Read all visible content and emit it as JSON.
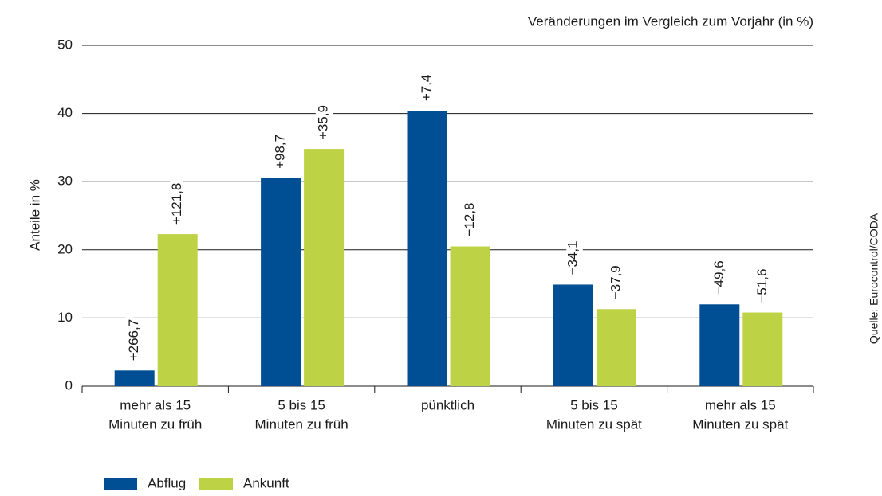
{
  "chart_data": {
    "type": "bar",
    "subtitle": "Veränderungen im Vergleich zum Vorjahr (in %)",
    "y_label": "Anteile in %",
    "source": "Quelle: Eurocontrol/CODA",
    "categories": [
      [
        "mehr als 15",
        "Minuten zu früh"
      ],
      [
        "5 bis 15",
        "Minuten zu früh"
      ],
      [
        "pünktlich"
      ],
      [
        "5 bis 15",
        "Minuten zu spät"
      ],
      [
        "mehr als 15",
        "Minuten zu spät"
      ]
    ],
    "series": [
      {
        "name": "Abflug",
        "color": "#004f94",
        "values": [
          2.3,
          30.5,
          40.4,
          14.9,
          12.0
        ],
        "change_labels": [
          "+266,7",
          "+98,7",
          "+7,4",
          "−34,1",
          "−49,6"
        ]
      },
      {
        "name": "Ankunft",
        "color": "#bdd244",
        "values": [
          22.3,
          34.8,
          20.5,
          11.3,
          10.8
        ],
        "change_labels": [
          "+121,8",
          "+35,9",
          "−12,8",
          "−37,9",
          "−51,6"
        ]
      }
    ],
    "ylim": [
      0,
      50
    ],
    "yticks": [
      0,
      10,
      20,
      30,
      40,
      50
    ],
    "grid": true
  }
}
